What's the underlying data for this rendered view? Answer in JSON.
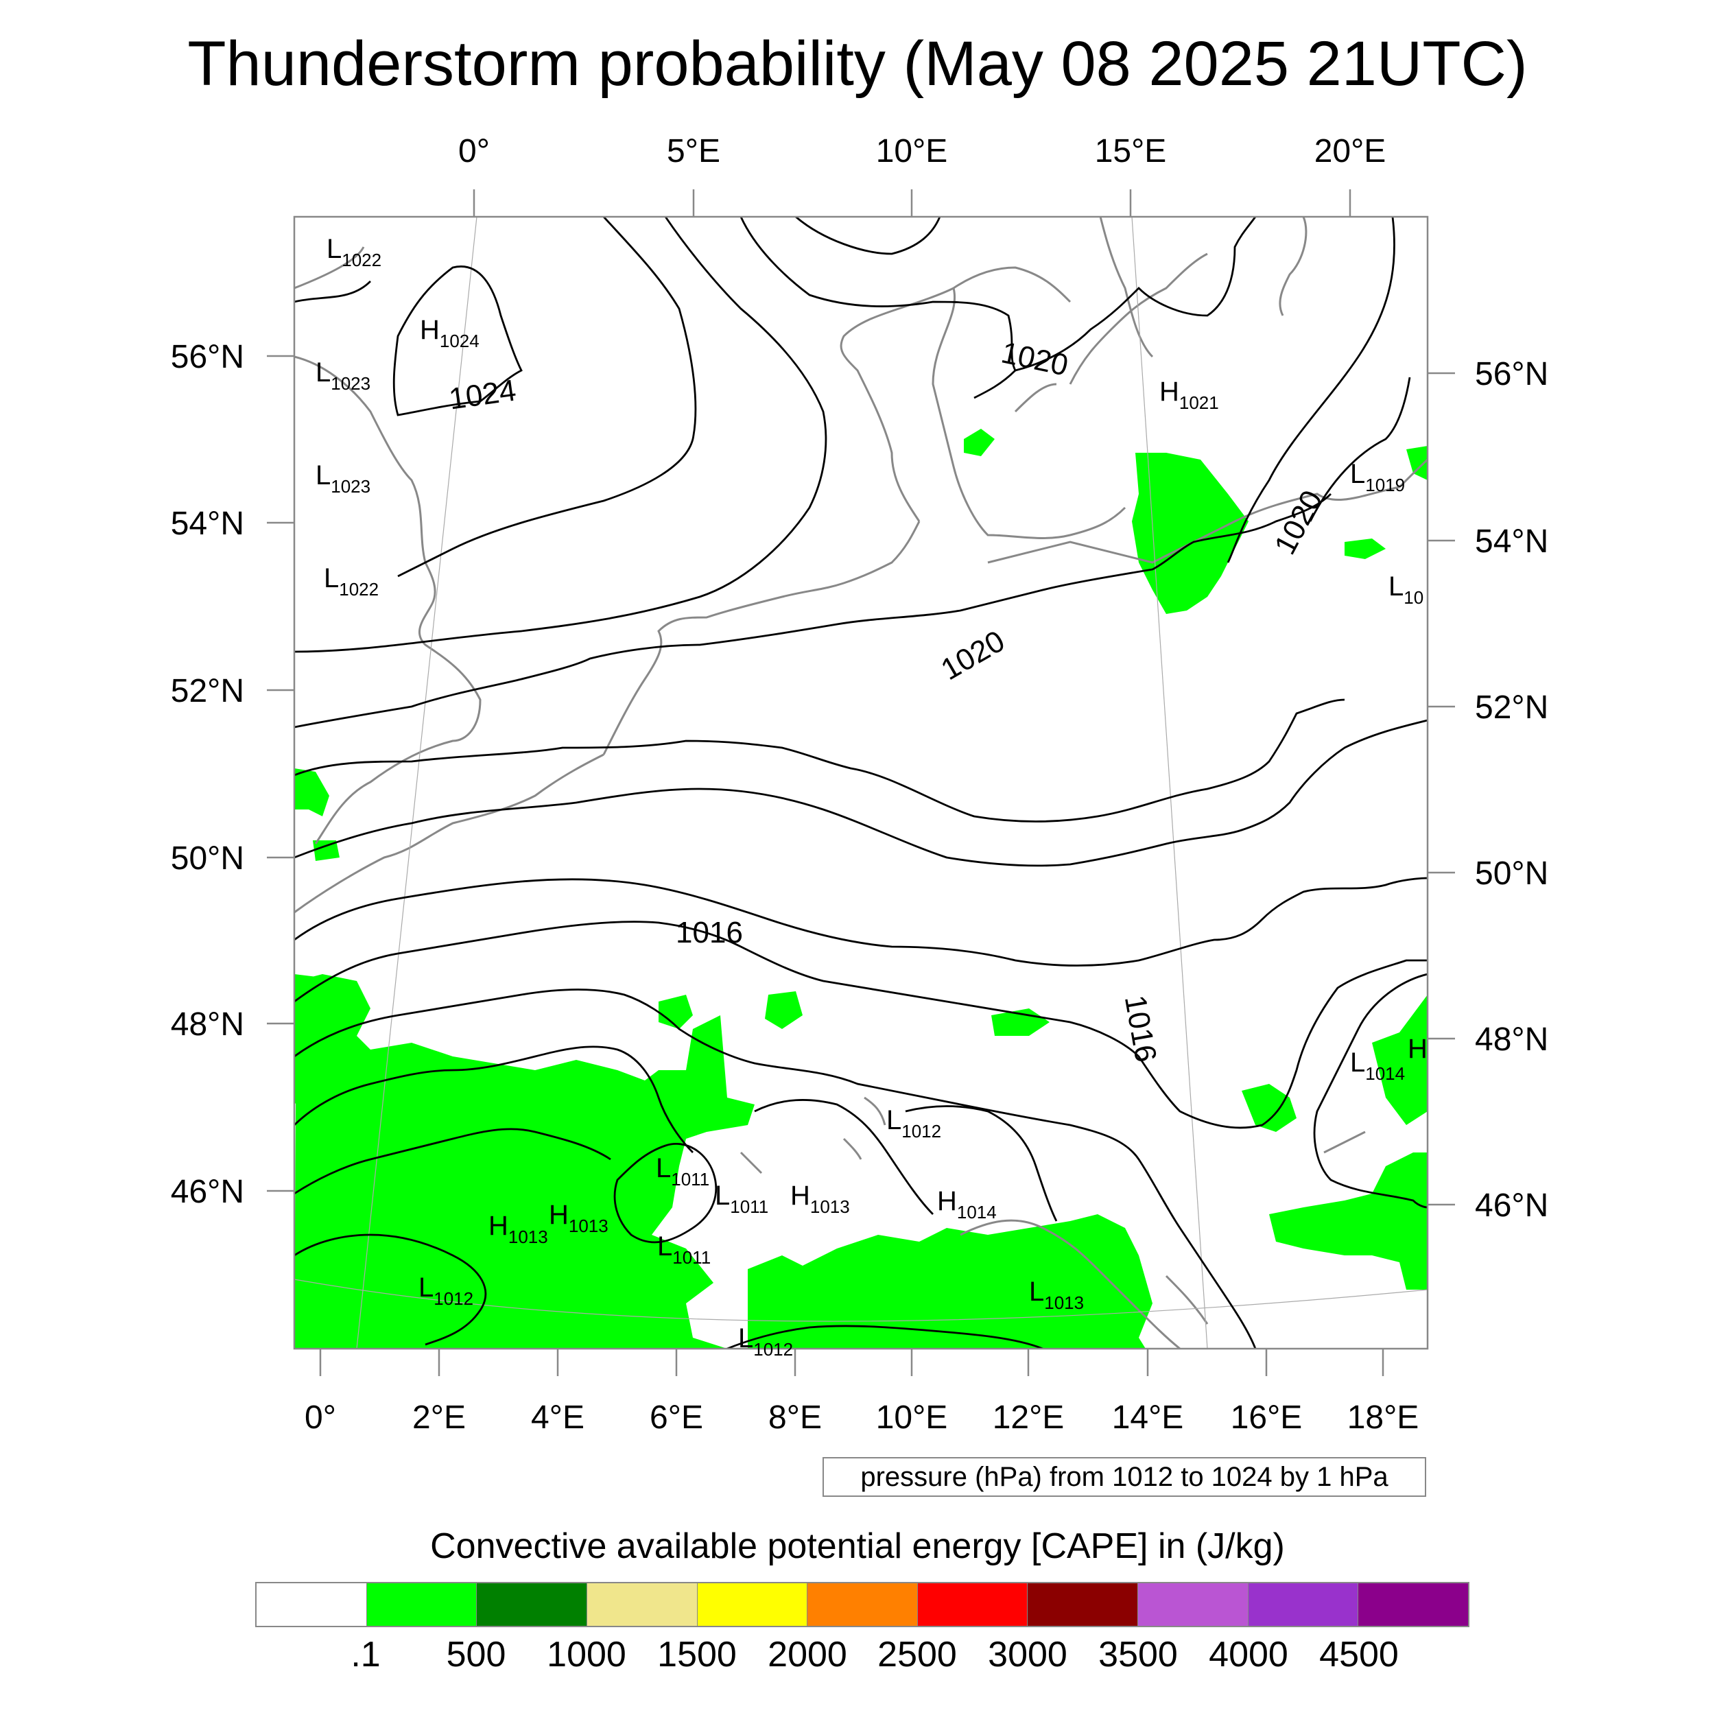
{
  "title": "Thunderstorm probability (May 08 2025 21UTC)",
  "map": {
    "top_axis_labels": [
      "0°",
      "5°E",
      "10°E",
      "15°E",
      "20°E"
    ],
    "bottom_axis_labels": [
      "0°",
      "2°E",
      "4°E",
      "6°E",
      "8°E",
      "10°E",
      "12°E",
      "14°E",
      "16°E",
      "18°E"
    ],
    "left_axis_labels": [
      "56°N",
      "54°N",
      "52°N",
      "50°N",
      "48°N",
      "46°N"
    ],
    "right_axis_labels": [
      "56°N",
      "54°N",
      "52°N",
      "50°N",
      "48°N",
      "46°N"
    ],
    "isobar_labels": [
      "1024",
      "1020",
      "1020",
      "1020",
      "1016",
      "1016"
    ],
    "pressure_centers": [
      {
        "type": "L",
        "value": "1022"
      },
      {
        "type": "H",
        "value": "1024"
      },
      {
        "type": "L",
        "value": "1023"
      },
      {
        "type": "L",
        "value": "1023"
      },
      {
        "type": "L",
        "value": "1022"
      },
      {
        "type": "H",
        "value": "1021"
      },
      {
        "type": "L",
        "value": "1019"
      },
      {
        "type": "L",
        "value": "10"
      },
      {
        "type": "L",
        "value": "1012"
      },
      {
        "type": "L",
        "value": "1011"
      },
      {
        "type": "L",
        "value": "1011"
      },
      {
        "type": "H",
        "value": "1013"
      },
      {
        "type": "H",
        "value": "1014"
      },
      {
        "type": "H",
        "value": "1013"
      },
      {
        "type": "H",
        "value": "1013"
      },
      {
        "type": "L",
        "value": "1011"
      },
      {
        "type": "L",
        "value": "1012"
      },
      {
        "type": "L",
        "value": "1013"
      },
      {
        "type": "L",
        "value": "1012"
      },
      {
        "type": "L",
        "value": "1014"
      },
      {
        "type": "H",
        "value": ""
      }
    ],
    "land_color": "#888888",
    "isobar_color": "#000000",
    "cape_fill_color": "#00ff00"
  },
  "contour_note": "pressure (hPa) from 1012 to 1024 by 1 hPa",
  "colorbar": {
    "title": "Convective available potential energy [CAPE] in (J/kg)",
    "colors": [
      "#ffffff",
      "#00ff00",
      "#008000",
      "#f0e68c",
      "#ffff00",
      "#ff8000",
      "#ff0000",
      "#8b0000",
      "#ba55d3",
      "#9932cc",
      "#8b008b"
    ],
    "labels": [
      ".1",
      "500",
      "1000",
      "1500",
      "2000",
      "2500",
      "3000",
      "3500",
      "4000",
      "4500"
    ]
  }
}
